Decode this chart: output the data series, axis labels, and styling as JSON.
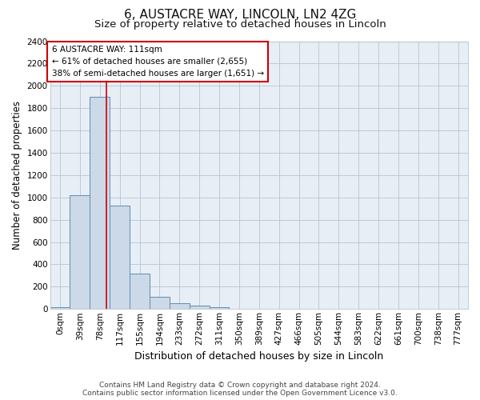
{
  "title": "6, AUSTACRE WAY, LINCOLN, LN2 4ZG",
  "subtitle": "Size of property relative to detached houses in Lincoln",
  "xlabel": "Distribution of detached houses by size in Lincoln",
  "ylabel": "Number of detached properties",
  "bin_labels": [
    "0sqm",
    "39sqm",
    "78sqm",
    "117sqm",
    "155sqm",
    "194sqm",
    "233sqm",
    "272sqm",
    "311sqm",
    "350sqm",
    "389sqm",
    "427sqm",
    "466sqm",
    "505sqm",
    "544sqm",
    "583sqm",
    "622sqm",
    "661sqm",
    "700sqm",
    "738sqm",
    "777sqm"
  ],
  "bar_values": [
    15,
    1020,
    1905,
    930,
    315,
    110,
    52,
    28,
    18,
    3,
    0,
    0,
    0,
    0,
    0,
    0,
    0,
    0,
    0,
    0,
    0
  ],
  "bar_color": "#ccd9e8",
  "bar_edgecolor": "#5b8db8",
  "vline_x": 2.84,
  "vline_color": "#cc0000",
  "annotation_text": "6 AUSTACRE WAY: 111sqm\n← 61% of detached houses are smaller (2,655)\n38% of semi-detached houses are larger (1,651) →",
  "annotation_box_edgecolor": "#cc0000",
  "annotation_box_facecolor": "#ffffff",
  "ylim": [
    0,
    2400
  ],
  "yticks": [
    0,
    200,
    400,
    600,
    800,
    1000,
    1200,
    1400,
    1600,
    1800,
    2000,
    2200,
    2400
  ],
  "footer_text": "Contains HM Land Registry data © Crown copyright and database right 2024.\nContains public sector information licensed under the Open Government Licence v3.0.",
  "bg_color": "#ffffff",
  "plot_bg_color": "#e8eef5",
  "grid_color": "#b8c4cf",
  "title_fontsize": 11,
  "subtitle_fontsize": 9.5,
  "xlabel_fontsize": 9,
  "ylabel_fontsize": 8.5,
  "tick_fontsize": 7.5,
  "footer_fontsize": 6.5,
  "annot_fontsize": 7.5
}
